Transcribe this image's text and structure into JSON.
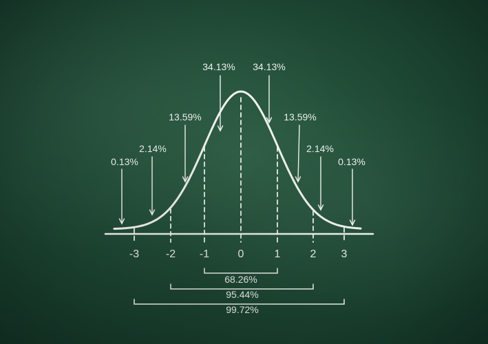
{
  "diagram": {
    "type": "normal-distribution",
    "sigma_ticks": [
      "-3",
      "-2",
      "-1",
      "0",
      "1",
      "2",
      "3"
    ],
    "region_percents": [
      {
        "label": "0.13%",
        "side": "left"
      },
      {
        "label": "2.14%",
        "side": "left"
      },
      {
        "label": "13.59%",
        "side": "left"
      },
      {
        "label": "34.13%",
        "side": "left"
      },
      {
        "label": "34.13%",
        "side": "right"
      },
      {
        "label": "13.59%",
        "side": "right"
      },
      {
        "label": "2.14%",
        "side": "right"
      },
      {
        "label": "0.13%",
        "side": "right"
      }
    ],
    "ranges": [
      {
        "label": "68.26%",
        "from": -1,
        "to": 1
      },
      {
        "label": "95.44%",
        "from": -2,
        "to": 2
      },
      {
        "label": "99.72%",
        "from": -3,
        "to": 3
      }
    ],
    "colors": {
      "chalk": "#f2f4ef",
      "board": "#23503a"
    }
  }
}
